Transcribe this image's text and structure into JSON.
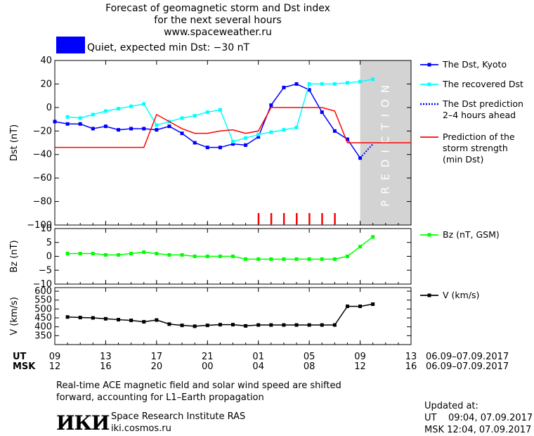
{
  "header": {
    "line1": "Forecast of geomagnetic storm and Dst index",
    "line2": "for the next several hours",
    "line3": "www.spaceweather.ru"
  },
  "status": {
    "color": "#0000ff",
    "text": "Quiet, expected min Dst: −30 nT"
  },
  "footer": {
    "note_line1": "Real-time ACE magnetic field and solar wind speed are shifted",
    "note_line2": "forward, accounting for L1–Earth propagation",
    "institute_logo": "ИКИ",
    "institute_name": "Space Research Institute RAS",
    "institute_url": "iki.cosmos.ru",
    "updated_label": "Updated at:",
    "updated_ut": "UT    09:04, 07.09.2017",
    "updated_msk": "MSK 12:04, 07.09.2017"
  },
  "chart_data": [
    {
      "type": "line",
      "ylabel": "Dst (nT)",
      "ylim": [
        -100,
        40
      ],
      "yticks": [
        40,
        20,
        0,
        -20,
        -40,
        -60,
        -80,
        -100
      ],
      "xlim": [
        0,
        28
      ],
      "prediction_band": {
        "x": [
          24,
          28
        ],
        "label": "PREDICTION",
        "color": "#d3d3d3"
      },
      "storm_markers": {
        "x": [
          16,
          17,
          18,
          19,
          20,
          21,
          22
        ],
        "color": "#ff0000"
      },
      "series": [
        {
          "name": "The Dst, Kyoto",
          "color": "#0000ff",
          "x": [
            0,
            1,
            2,
            3,
            4,
            5,
            6,
            7,
            8,
            9,
            10,
            11,
            12,
            13,
            14,
            15,
            16,
            17,
            18,
            19,
            20,
            21,
            22,
            23,
            24
          ],
          "y": [
            -12,
            -14,
            -14,
            -18,
            -16,
            -19,
            -18,
            -18,
            -19,
            -16,
            -22,
            -30,
            -34,
            -34,
            -31,
            -32,
            -25,
            2,
            17,
            20,
            15,
            -4,
            -20,
            -27,
            -43
          ]
        },
        {
          "name": "The recovered Dst",
          "color": "#00ffff",
          "x": [
            1,
            2,
            3,
            4,
            5,
            6,
            7,
            8,
            9,
            10,
            11,
            12,
            13,
            14,
            15,
            16,
            17,
            18,
            19,
            20,
            21,
            22,
            23,
            24,
            25
          ],
          "y": [
            -8,
            -9,
            -6,
            -3,
            -1,
            1,
            3,
            -15,
            -12,
            -9,
            -7,
            -4,
            -2,
            -29,
            -26,
            -23,
            -21,
            -19,
            -17,
            20,
            20,
            20,
            21,
            22,
            24
          ]
        },
        {
          "name": "The Dst prediction\n2–4 hours ahead",
          "color": "#0000ff",
          "dotted": true,
          "x": [
            24,
            25
          ],
          "y": [
            -43,
            -31
          ]
        },
        {
          "name": "Prediction of the\nstorm strength\n(min Dst)",
          "color": "#ff0000",
          "x": [
            0,
            7,
            8,
            10,
            11,
            12,
            13,
            14,
            15,
            16,
            17,
            18,
            19,
            20,
            21,
            22,
            23,
            28
          ],
          "y": [
            -34,
            -34,
            -6,
            -18,
            -22,
            -22,
            -20,
            -19,
            -22,
            -20,
            0,
            0,
            0,
            0,
            0,
            -3,
            -30,
            -30
          ]
        }
      ]
    },
    {
      "type": "line",
      "ylabel": "Bz (nT)",
      "ylim": [
        -10,
        10
      ],
      "yticks": [
        10,
        5,
        0,
        -5,
        -10
      ],
      "xlim": [
        0,
        28
      ],
      "series": [
        {
          "name": "Bz (nT, GSM)",
          "color": "#00ff00",
          "x": [
            1,
            2,
            3,
            4,
            5,
            6,
            7,
            8,
            9,
            10,
            11,
            12,
            13,
            14,
            15,
            16,
            17,
            18,
            19,
            20,
            21,
            22,
            23,
            24,
            25
          ],
          "y": [
            1,
            1,
            1,
            0.5,
            0.5,
            1,
            1.5,
            1,
            0.5,
            0.5,
            0,
            0,
            0,
            0,
            -1,
            -1,
            -1,
            -1,
            -1,
            -1,
            -1,
            -1,
            0,
            3.5,
            7
          ]
        }
      ]
    },
    {
      "type": "line",
      "ylabel": "V (km/s)",
      "ylim": [
        300,
        620
      ],
      "yticks": [
        600,
        550,
        500,
        450,
        400,
        350
      ],
      "xlim": [
        0,
        28
      ],
      "series": [
        {
          "name": "V (km/s)",
          "color": "#000000",
          "x": [
            1,
            2,
            3,
            4,
            5,
            6,
            7,
            8,
            9,
            10,
            11,
            12,
            13,
            14,
            15,
            16,
            17,
            18,
            19,
            20,
            21,
            22,
            23,
            24,
            25
          ],
          "y": [
            455,
            452,
            450,
            445,
            440,
            436,
            428,
            438,
            415,
            408,
            403,
            408,
            412,
            412,
            405,
            410,
            410,
            410,
            410,
            410,
            410,
            410,
            515,
            515,
            527
          ]
        }
      ]
    }
  ],
  "xaxis": {
    "ut_label": "UT",
    "msk_label": "MSK",
    "tick_positions": [
      0,
      4,
      8,
      12,
      16,
      20,
      24,
      28
    ],
    "ut_ticks": [
      "09",
      "13",
      "17",
      "21",
      "01",
      "05",
      "09",
      "13"
    ],
    "msk_ticks": [
      "12",
      "16",
      "20",
      "00",
      "04",
      "08",
      "12",
      "16"
    ],
    "ut_range": "06.09–07.09.2017",
    "msk_range": "06.09–07.09.2017"
  }
}
